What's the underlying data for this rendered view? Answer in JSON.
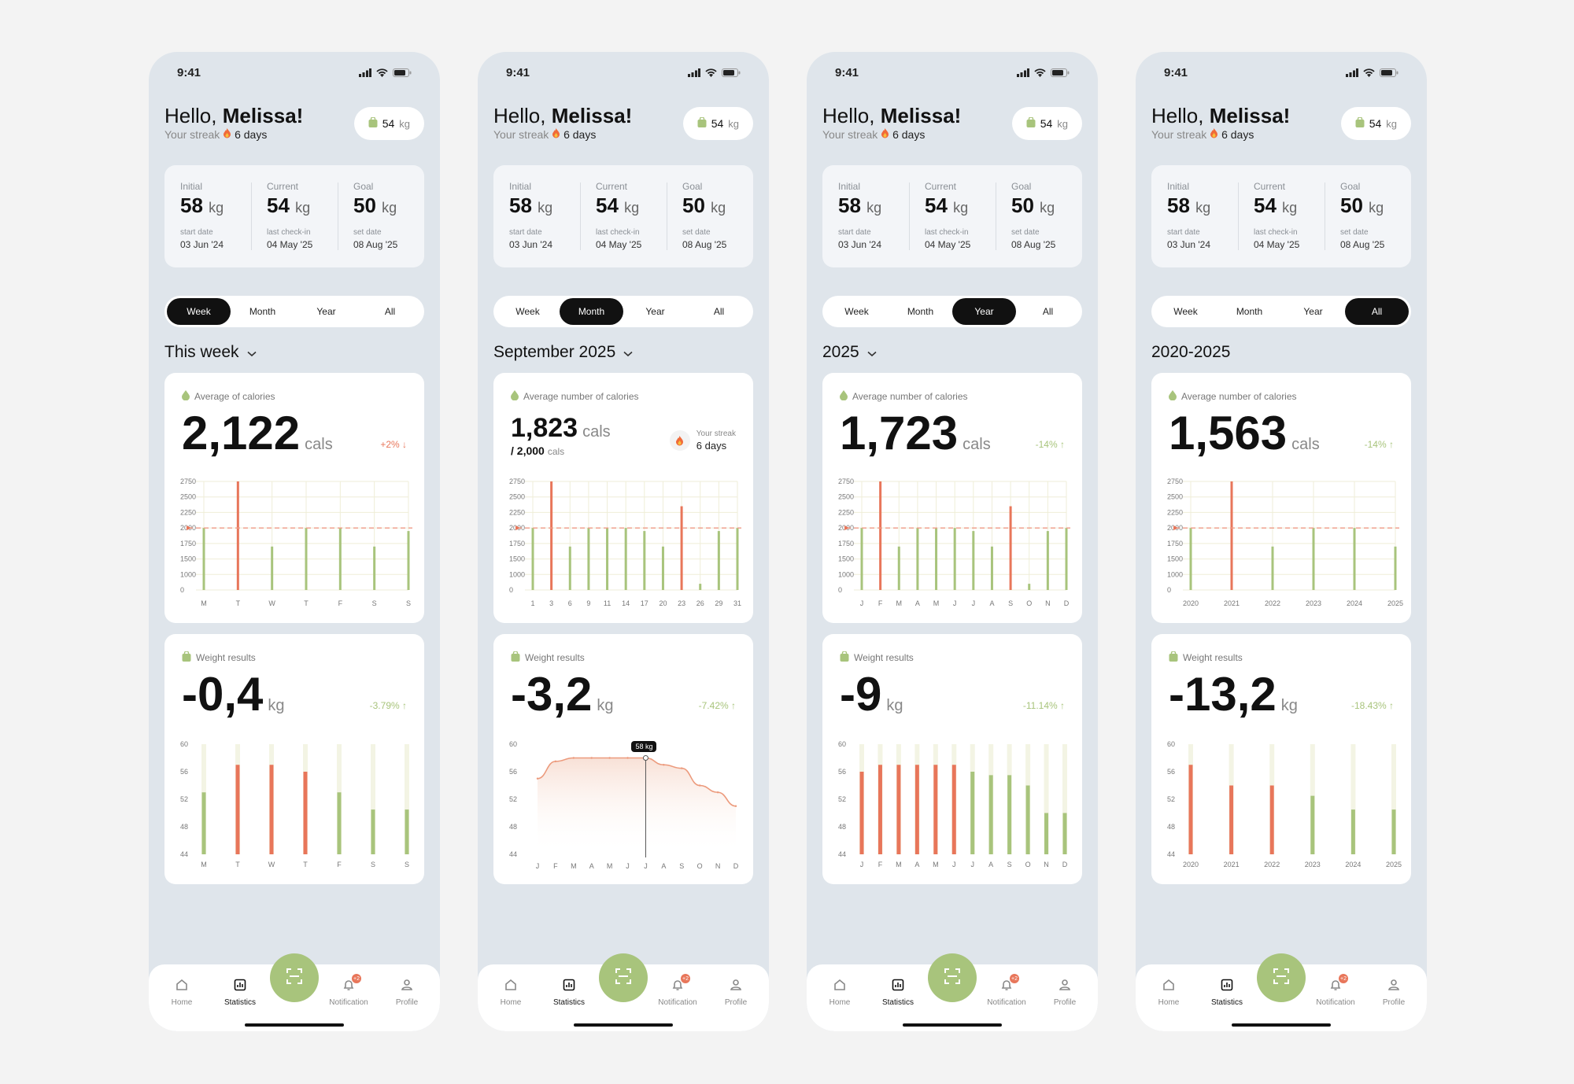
{
  "common": {
    "time": "9:41",
    "greeting": "Hello,",
    "name": "Melissa!",
    "streak_label": "Your streak",
    "streak_days": "6 days",
    "weight_value": "54",
    "weight_unit": "kg",
    "stats": [
      {
        "label": "Initial",
        "value": "58",
        "unit": "kg",
        "sub": "start date",
        "date": "03 Jun '24"
      },
      {
        "label": "Current",
        "value": "54",
        "unit": "kg",
        "sub": "last check-in",
        "date": "04 May '25"
      },
      {
        "label": "Goal",
        "value": "50",
        "unit": "kg",
        "sub": "set date",
        "date": "08 Aug '25"
      }
    ],
    "tabs": [
      "Week",
      "Month",
      "Year",
      "All"
    ],
    "calorie_unit": "cals",
    "weight_card_label": "Weight results",
    "nav": [
      {
        "label": "Home",
        "icon": "home-icon"
      },
      {
        "label": "Statistics",
        "icon": "statistics-icon"
      },
      {
        "label": "Notification",
        "icon": "bell-icon",
        "badge": "+2"
      },
      {
        "label": "Profile",
        "icon": "profile-icon"
      }
    ],
    "colors": {
      "green": "#a8c47c",
      "red": "#e8765a",
      "background": "#dfe5eb"
    }
  },
  "screens": [
    {
      "active_tab": 0,
      "period": "This week",
      "period_has_dropdown": true,
      "calorie_label": "Average of calories",
      "calorie_value": "2,122",
      "calorie_delta": "+2% ↓",
      "calorie_delta_color": "red",
      "weight_value": "-0,4",
      "weight_delta": "-3.79% ↑",
      "chart_data": [
        {
          "type": "bar",
          "categories": [
            "M",
            "T",
            "W",
            "T",
            "F",
            "S",
            "S"
          ],
          "values": [
            2000,
            2750,
            1700,
            2000,
            2000,
            1700,
            1950
          ],
          "highlight": [
            false,
            true,
            false,
            false,
            false,
            false,
            false
          ],
          "yticks": [
            "2750",
            "2500",
            "2250",
            "2000",
            "1750",
            "1500",
            "1000",
            "0"
          ],
          "target": 2000
        },
        {
          "type": "bar",
          "categories": [
            "M",
            "T",
            "W",
            "T",
            "F",
            "S",
            "S"
          ],
          "values": [
            53,
            57,
            57,
            56,
            53,
            50.5,
            50.5
          ],
          "highlight": [
            false,
            true,
            true,
            true,
            false,
            false,
            false
          ],
          "yticks": [
            "60",
            "56",
            "52",
            "48",
            "44"
          ],
          "ylim": [
            44,
            60
          ]
        }
      ]
    },
    {
      "active_tab": 1,
      "period": "September 2025",
      "period_has_dropdown": true,
      "calorie_label": "Average number of calories",
      "calorie_value": "1,823",
      "calorie_goal": "/ 2,000",
      "calorie_goal_unit": "cals",
      "show_streak_badge": true,
      "weight_value": "-3,2",
      "weight_delta": "-7.42% ↑",
      "tooltip": "58 kg",
      "chart_data": [
        {
          "type": "bar",
          "categories": [
            "1",
            "3",
            "6",
            "9",
            "11",
            "14",
            "17",
            "20",
            "23",
            "26",
            "29",
            "31"
          ],
          "values": [
            2000,
            2750,
            1700,
            2000,
            2000,
            2000,
            1950,
            1700,
            2350,
            1100,
            1950,
            2000
          ],
          "highlight": [
            false,
            true,
            false,
            false,
            false,
            false,
            false,
            false,
            true,
            false,
            false,
            false
          ],
          "yticks": [
            "2750",
            "2500",
            "2250",
            "2000",
            "1750",
            "1500",
            "1000",
            "0"
          ],
          "target": 2000
        },
        {
          "type": "area",
          "categories": [
            "J",
            "F",
            "M",
            "A",
            "M",
            "J",
            "J",
            "A",
            "S",
            "O",
            "N",
            "D"
          ],
          "values": [
            55,
            57.5,
            58,
            58,
            58,
            58,
            58,
            57,
            56.5,
            54,
            53,
            51
          ],
          "yticks": [
            "60",
            "56",
            "52",
            "48",
            "44"
          ],
          "ylim": [
            44,
            60
          ]
        }
      ]
    },
    {
      "active_tab": 2,
      "period": "2025",
      "period_has_dropdown": true,
      "calorie_label": "Average number of calories",
      "calorie_value": "1,723",
      "calorie_delta": "-14% ↑",
      "calorie_delta_color": "green",
      "weight_value": "-9",
      "weight_delta": "-11.14% ↑",
      "chart_data": [
        {
          "type": "bar",
          "categories": [
            "J",
            "F",
            "M",
            "A",
            "M",
            "J",
            "J",
            "A",
            "S",
            "O",
            "N",
            "D"
          ],
          "values": [
            2000,
            2750,
            1700,
            2000,
            2000,
            2000,
            1950,
            1700,
            2350,
            1100,
            1950,
            2000
          ],
          "highlight": [
            false,
            true,
            false,
            false,
            false,
            false,
            false,
            false,
            true,
            false,
            false,
            false
          ],
          "yticks": [
            "2750",
            "2500",
            "2250",
            "2000",
            "1750",
            "1500",
            "1000",
            "0"
          ],
          "target": 2000
        },
        {
          "type": "bar",
          "categories": [
            "J",
            "F",
            "M",
            "A",
            "M",
            "J",
            "J",
            "A",
            "S",
            "O",
            "N",
            "D"
          ],
          "values": [
            56,
            57,
            57,
            57,
            57,
            57,
            56,
            55.5,
            55.5,
            54,
            50,
            50
          ],
          "highlight": [
            true,
            true,
            true,
            true,
            true,
            true,
            false,
            false,
            false,
            false,
            false,
            false
          ],
          "yticks": [
            "60",
            "56",
            "52",
            "48",
            "44"
          ],
          "ylim": [
            44,
            60
          ]
        }
      ]
    },
    {
      "active_tab": 3,
      "period": "2020-2025",
      "period_has_dropdown": false,
      "calorie_label": "Average number of calories",
      "calorie_value": "1,563",
      "calorie_delta": "-14% ↑",
      "calorie_delta_color": "green",
      "weight_value": "-13,2",
      "weight_delta": "-18.43% ↑",
      "chart_data": [
        {
          "type": "bar",
          "categories": [
            "2020",
            "2021",
            "2022",
            "2023",
            "2024",
            "2025"
          ],
          "values": [
            2000,
            2750,
            1700,
            2000,
            2000,
            1700
          ],
          "highlight": [
            false,
            true,
            false,
            false,
            false,
            false
          ],
          "yticks": [
            "2750",
            "2500",
            "2250",
            "2000",
            "1750",
            "1500",
            "1000",
            "0"
          ],
          "target": 2000
        },
        {
          "type": "bar",
          "categories": [
            "2020",
            "2021",
            "2022",
            "2023",
            "2024",
            "2025"
          ],
          "values": [
            57,
            54,
            54,
            52.5,
            50.5,
            50.5
          ],
          "highlight": [
            true,
            true,
            true,
            false,
            false,
            false
          ],
          "yticks": [
            "60",
            "56",
            "52",
            "48",
            "44"
          ],
          "ylim": [
            44,
            60
          ]
        }
      ]
    }
  ]
}
